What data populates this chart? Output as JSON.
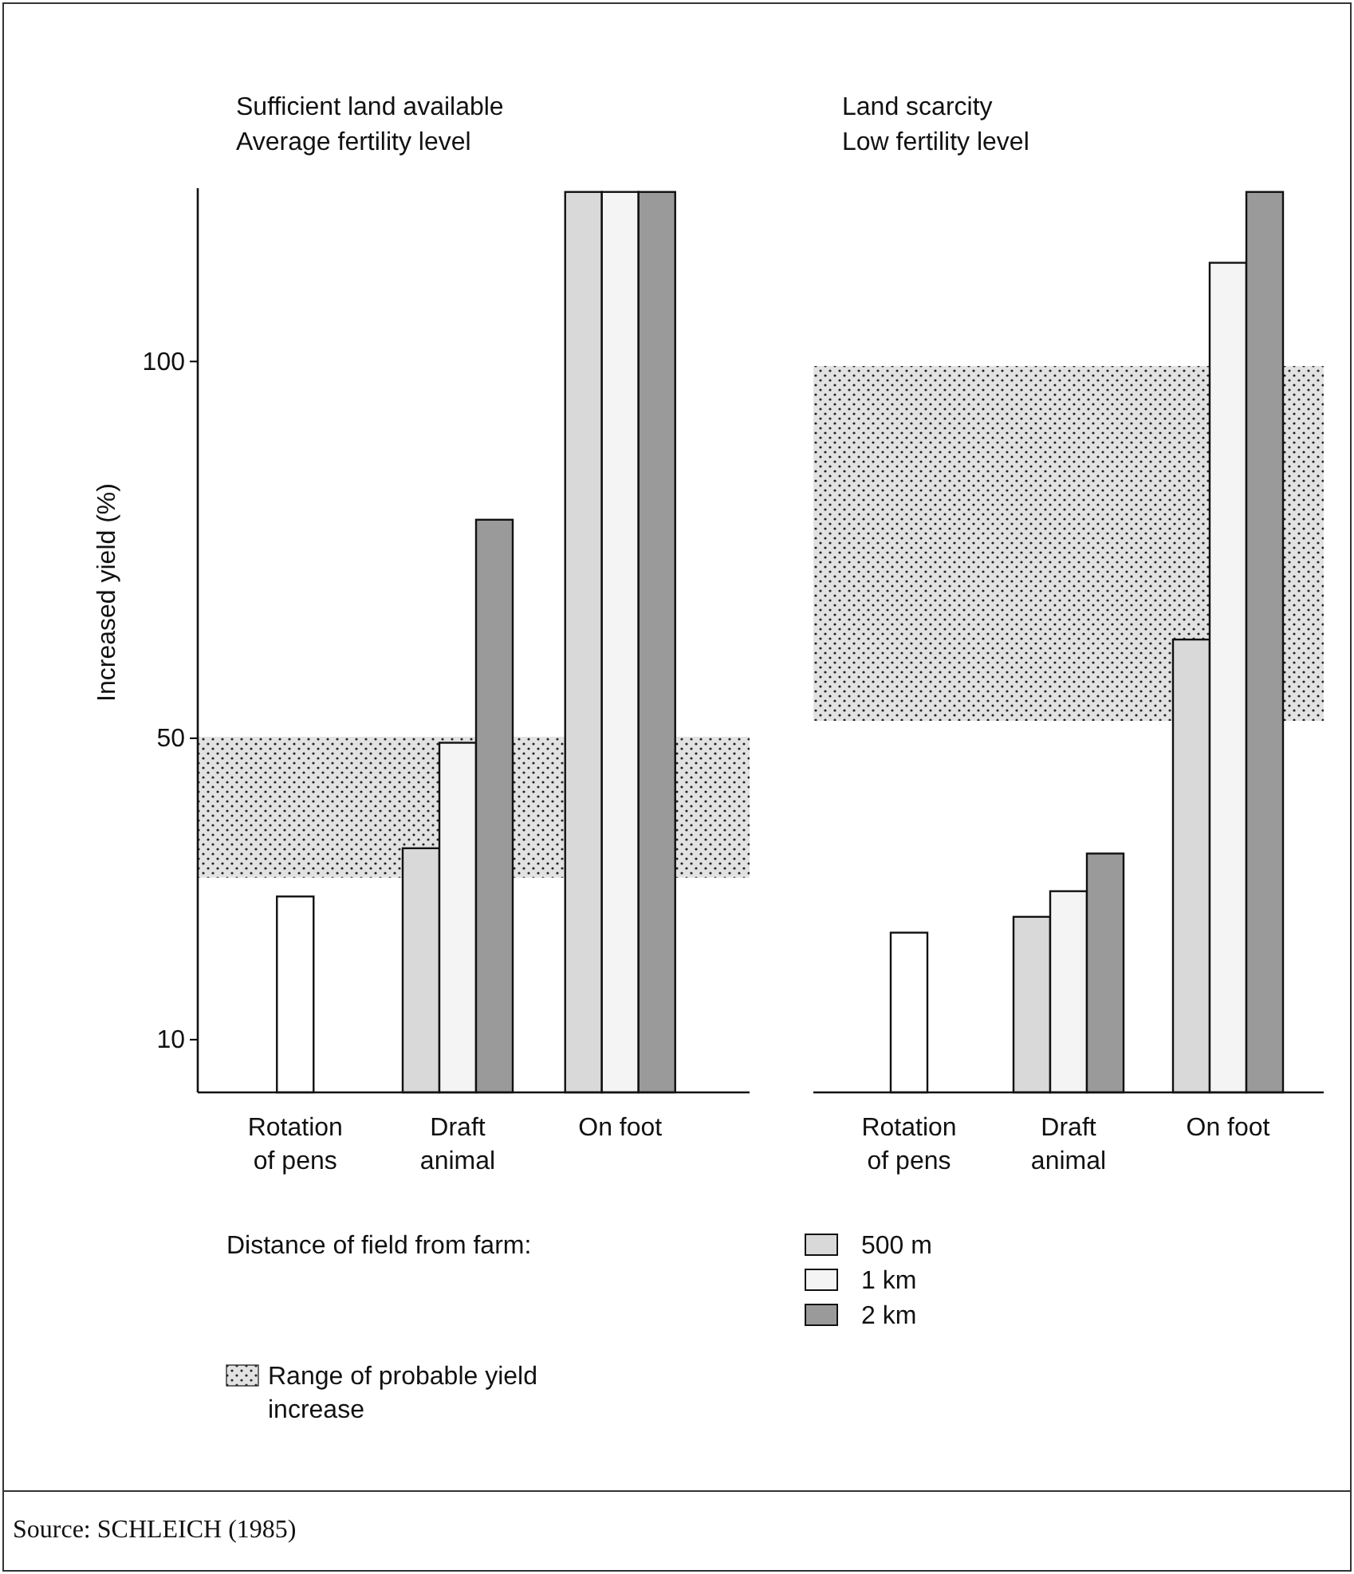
{
  "chart_data": [
    {
      "type": "bar",
      "title": "Sufficient land available",
      "subtitle": "Average fertility level",
      "ylabel": "Increased yield (%)",
      "categories": [
        "Rotation\nof pens",
        "Draft\nanimal",
        "On foot"
      ],
      "series": [
        {
          "color": "#ffffff",
          "values": [
            29.0,
            null,
            null
          ]
        },
        {
          "name": "500 m",
          "color": "#d9d9d9",
          "values": [
            null,
            35.4,
            122.5
          ]
        },
        {
          "name": "1 km",
          "color": "#f4f4f4",
          "values": [
            null,
            49.4,
            122.5
          ]
        },
        {
          "name": "2 km",
          "color": "#9a9a9a",
          "values": [
            null,
            79.0,
            122.5
          ]
        }
      ],
      "ylim": [
        3,
        123
      ],
      "yticks": [
        10,
        50,
        100
      ],
      "bands": [
        {
          "axis": "y",
          "from": 31.5,
          "to": 50.2,
          "label": "Range of probable yield\nincrease",
          "color": "#e2e2e2"
        }
      ],
      "legend": "bottom",
      "legend_title": "Distance of field from farm:",
      "annotations": [
        "Source: SCHLEICH (1985)"
      ]
    },
    {
      "type": "bar",
      "title": "Land scarcity",
      "subtitle": "Low fertility level",
      "categories": [
        "Rotation\nof pens",
        "Draft\nanimal",
        "On foot"
      ],
      "series": [
        {
          "color": "#ffffff",
          "values": [
            24.2,
            null,
            null
          ]
        },
        {
          "color": "#d9d9d9",
          "values": [
            null,
            26.3,
            63.1
          ]
        },
        {
          "color": "#f4f4f4",
          "values": [
            null,
            29.7,
            113.1
          ]
        },
        {
          "color": "#9a9a9a",
          "values": [
            null,
            34.7,
            122.5
          ]
        }
      ],
      "ylim": [
        3,
        123
      ],
      "tick_labels": "x",
      "bands": [
        {
          "axis": "y",
          "from": 52.3,
          "to": 99.4,
          "color": "#e2e2e2"
        }
      ]
    }
  ]
}
